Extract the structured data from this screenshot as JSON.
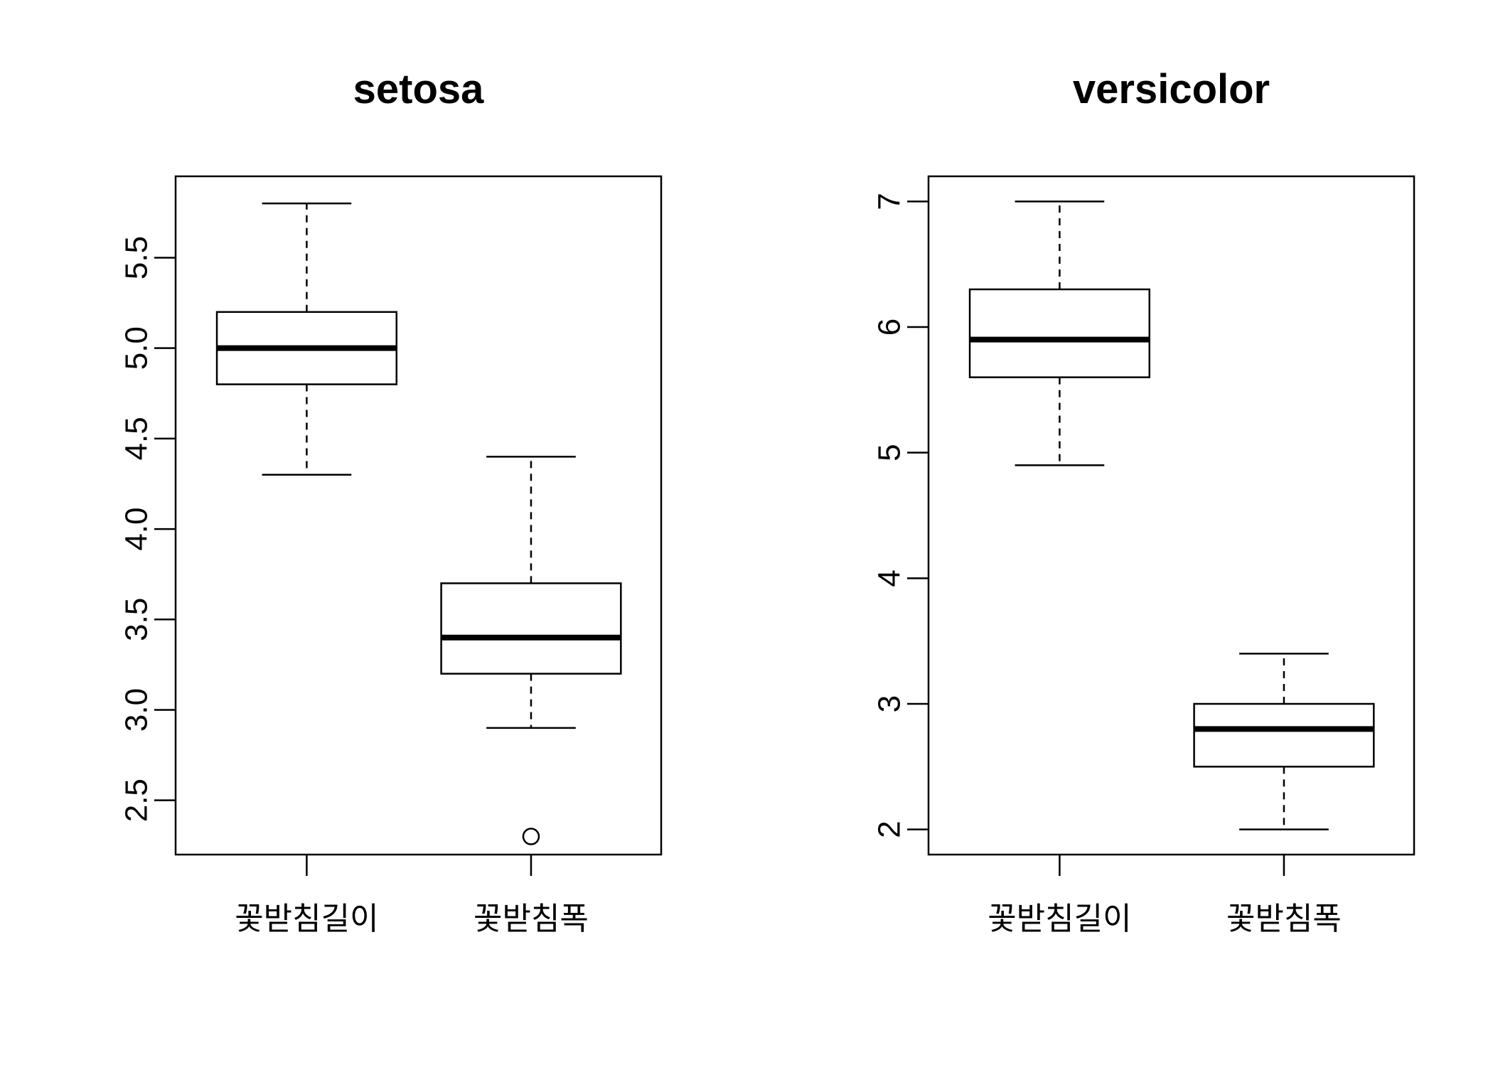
{
  "chart_data": [
    {
      "type": "boxplot",
      "title": "setosa",
      "categories": [
        "꽃받침길이",
        "꽃받침폭"
      ],
      "ylim": [
        2.2,
        5.95
      ],
      "yticks": [
        "2.5",
        "3.0",
        "3.5",
        "4.0",
        "4.5",
        "5.0",
        "5.5"
      ],
      "boxes": [
        {
          "category": "꽃받침길이",
          "min": 4.3,
          "q1": 4.8,
          "median": 5.0,
          "q3": 5.2,
          "max": 5.8,
          "outliers": []
        },
        {
          "category": "꽃받침폭",
          "min": 2.9,
          "q1": 3.2,
          "median": 3.4,
          "q3": 3.7,
          "max": 4.4,
          "outliers": [
            2.3
          ]
        }
      ]
    },
    {
      "type": "boxplot",
      "title": "versicolor",
      "categories": [
        "꽃받침길이",
        "꽃받침폭"
      ],
      "ylim": [
        1.8,
        7.2
      ],
      "yticks": [
        "2",
        "3",
        "4",
        "5",
        "6",
        "7"
      ],
      "boxes": [
        {
          "category": "꽃받침길이",
          "min": 4.9,
          "q1": 5.6,
          "median": 5.9,
          "q3": 6.3,
          "max": 7.0,
          "outliers": []
        },
        {
          "category": "꽃받침폭",
          "min": 2.0,
          "q1": 2.5,
          "median": 2.8,
          "q3": 3.0,
          "max": 3.4,
          "outliers": []
        }
      ]
    }
  ]
}
